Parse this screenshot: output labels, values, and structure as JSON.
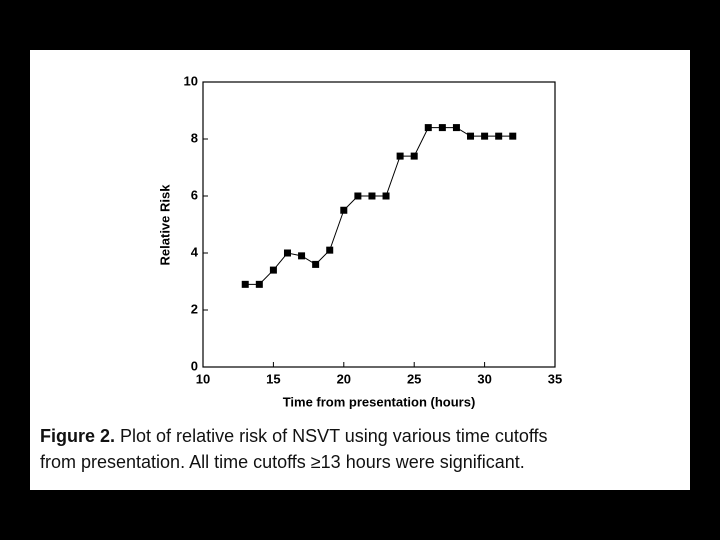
{
  "chart_data": {
    "type": "line",
    "x": [
      13,
      14,
      15,
      16,
      17,
      18,
      19,
      20,
      21,
      22,
      23,
      24,
      25,
      26,
      27,
      28,
      29,
      30,
      31,
      32
    ],
    "values": [
      2.9,
      2.9,
      3.4,
      4.0,
      3.9,
      3.6,
      4.1,
      5.5,
      6.0,
      6.0,
      6.0,
      7.4,
      7.4,
      8.4,
      8.4,
      8.4,
      8.1,
      8.1,
      8.1,
      8.1
    ],
    "color": "#000000",
    "xlim": [
      10,
      35
    ],
    "xticks": [
      10,
      15,
      20,
      25,
      30,
      35
    ],
    "ylim": [
      0,
      10
    ],
    "yticks": [
      0,
      2,
      4,
      6,
      8,
      10
    ],
    "xlabel": "Time from presentation (hours)",
    "ylabel": "Relative Risk",
    "caption_label": "Figure 2.",
    "caption_lines": [
      "Plot of relative risk of NSVT using various time cutoffs",
      "from presentation. All time cutoffs ≥13 hours were significant."
    ]
  }
}
